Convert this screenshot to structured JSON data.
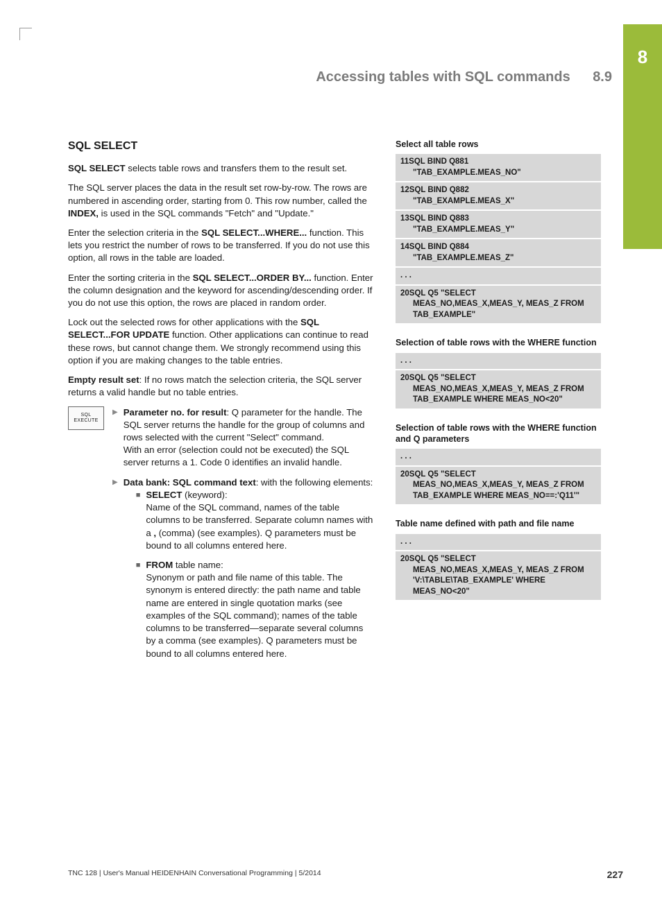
{
  "chapter_tab": "8",
  "header": {
    "title": "Accessing tables with SQL commands",
    "section": "8.9"
  },
  "h2": "SQL SELECT",
  "p1a": "SQL SELECT",
  "p1b": " selects table rows and transfers them to the result set.",
  "p2a": "The SQL server places the data in the result set row-by-row. The rows are numbered in ascending order, starting from 0. This row number, called the ",
  "p2b": "INDEX,",
  "p2c": " is used in the SQL commands \"Fetch\" and \"Update.\"",
  "p3a": "Enter the selection criteria in the ",
  "p3b": "SQL SELECT...WHERE...",
  "p3c": " function. This lets you restrict the number of rows to be transferred. If you do not use this option, all rows in the table are loaded.",
  "p4a": "Enter the sorting criteria in the ",
  "p4b": "SQL SELECT...ORDER BY...",
  "p4c": " function. Enter the column designation and the keyword for ascending/descending order. If you do not use this option, the rows are placed in random order.",
  "p5a": "Lock out the selected rows for other applications with the ",
  "p5b": "SQL SELECT...FOR UPDATE",
  "p5c": " function. Other applications can continue to read these rows, but cannot change them. We strongly recommend using this option if you are making changes to the table entries.",
  "p6a": "Empty result set",
  "p6b": ": If no rows match the selection criteria, the SQL server returns a valid handle but no table entries.",
  "softkey": "SQL EXECUTE",
  "b1a": "Parameter no. for result",
  "b1b": ": Q parameter for the handle. The SQL server returns the handle for the group of columns and rows selected with the current \"Select\" command.",
  "b1c": "With an error (selection could not be executed) the SQL server returns a 1. Code 0 identifies an invalid handle.",
  "b2a": "Data bank: SQL command text",
  "b2b": ": with the following elements:",
  "sb1a": "SELECT",
  "sb1b": " (keyword):",
  "sb1c": "Name of the SQL command, names of the table columns to be transferred. Separate column names with a ",
  "sb1d": ",",
  "sb1e": " (comma) (see examples). Q parameters must be bound to all columns entered here.",
  "sb2a": "FROM",
  "sb2b": " table name:",
  "sb2c": "Synonym or path and file name of this table. The synonym is entered directly: the path name and table name are entered in single quotation marks (see examples of the SQL command); names of the table columns to be transferred—separate several columns by a comma (see examples). Q parameters must be bound to all columns entered here.",
  "right": {
    "t1": "Select all table rows",
    "c1": [
      {
        "a": "11SQL BIND Q881",
        "b": "\"TAB_EXAMPLE.MEAS_NO\""
      },
      {
        "a": "12SQL BIND Q882",
        "b": "\"TAB_EXAMPLE.MEAS_X\""
      },
      {
        "a": "13SQL BIND Q883",
        "b": "\"TAB_EXAMPLE.MEAS_Y\""
      },
      {
        "a": "14SQL BIND Q884",
        "b": "\"TAB_EXAMPLE.MEAS_Z\""
      },
      {
        "a": ". . ."
      },
      {
        "a": "20SQL Q5 \"SELECT",
        "b": "MEAS_NO,MEAS_X,MEAS_Y, MEAS_Z FROM TAB_EXAMPLE\""
      }
    ],
    "t2": "Selection of table rows with the WHERE function",
    "c2": [
      {
        "a": ". . ."
      },
      {
        "a": "20SQL Q5 \"SELECT",
        "b": "MEAS_NO,MEAS_X,MEAS_Y, MEAS_Z FROM TAB_EXAMPLE WHERE MEAS_NO<20\""
      }
    ],
    "t3": "Selection of table rows with the WHERE function and Q parameters",
    "c3": [
      {
        "a": ". . ."
      },
      {
        "a": "20SQL Q5 \"SELECT",
        "b": "MEAS_NO,MEAS_X,MEAS_Y, MEAS_Z FROM TAB_EXAMPLE WHERE MEAS_NO==:'Q11'\""
      }
    ],
    "t4": "Table name defined with path and file name",
    "c4": [
      {
        "a": ". . ."
      },
      {
        "a": "20SQL Q5 \"SELECT",
        "b": "MEAS_NO,MEAS_X,MEAS_Y, MEAS_Z FROM 'V:\\TABLE\\TAB_EXAMPLE' WHERE MEAS_NO<20\""
      }
    ]
  },
  "footer": {
    "left": "TNC 128 | User's Manual HEIDENHAIN Conversational Programming | 5/2014",
    "page": "227"
  },
  "colors": {
    "tab": "#9bbb3a",
    "code_bg": "#d7d7d7",
    "header_gray": "#7a7a7a"
  }
}
